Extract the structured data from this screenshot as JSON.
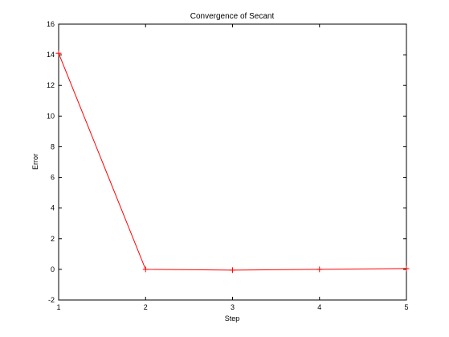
{
  "chart_data": {
    "type": "line",
    "title": "Convergence of Secant",
    "xlabel": "Step",
    "ylabel": "Error",
    "x": [
      1,
      2,
      3,
      4,
      5
    ],
    "series": [
      {
        "values": [
          14.1,
          0,
          -0.05,
          0,
          0.05
        ],
        "color": "#ff0000",
        "marker": "plus"
      }
    ],
    "xlim": [
      1,
      5
    ],
    "ylim": [
      -2,
      16
    ],
    "xticks": [
      1,
      2,
      3,
      4,
      5
    ],
    "yticks": [
      -2,
      0,
      2,
      4,
      6,
      8,
      10,
      12,
      14,
      16
    ],
    "grid": false,
    "legend": "none",
    "box": true
  }
}
